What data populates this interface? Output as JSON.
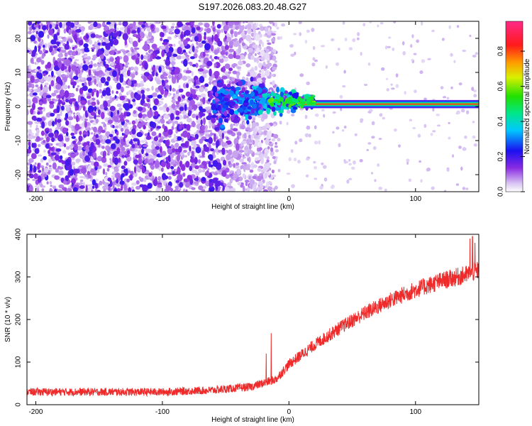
{
  "title": "S197.2026.083.20.48.G27",
  "colors": {
    "snr_line": "#ee2a2a",
    "axis": "#000000",
    "background": "#ffffff"
  },
  "chart_data": [
    {
      "type": "heatmap",
      "name": "spectrogram",
      "xlabel": "Height of straight line (km)",
      "ylabel": "Frequency (Hz)",
      "xlim": [
        -207,
        150
      ],
      "ylim": [
        -25,
        25
      ],
      "xticks": [
        -200,
        -100,
        0,
        100
      ],
      "yticks": [
        -20,
        -10,
        0,
        10,
        20
      ],
      "features": {
        "noise_region_x": [
          -207,
          -15
        ],
        "signal_band_center_hz": 0.7,
        "signal_band_width_hz": 2.4,
        "signal_onset_x": -60,
        "signal_stable_x": 20
      }
    },
    {
      "type": "colorbar",
      "name": "colorbar",
      "label": "Normalized spectral amplitude",
      "range": [
        0.0,
        0.97
      ],
      "ticks": [
        0.0,
        0.2,
        0.4,
        0.6,
        0.8
      ],
      "tick_labels": [
        "0.0",
        "0.2",
        "0.4",
        "0.6",
        "0.8"
      ],
      "colormap": "rainbow (white → purple → blue → cyan → green → yellow → orange → red → pink)"
    },
    {
      "type": "line",
      "name": "snr",
      "xlabel": "Height of straight line (km)",
      "ylabel": "SNR (10 * v/v)",
      "xlim": [
        -207,
        150
      ],
      "ylim": [
        0,
        400
      ],
      "xticks": [
        -200,
        -100,
        0,
        100
      ],
      "yticks": [
        0,
        100,
        200,
        300,
        400
      ],
      "series": [
        {
          "name": "SNR",
          "trend": {
            "x": [
              -207,
              -150,
              -100,
              -60,
              -30,
              -10,
              0,
              20,
              40,
              60,
              80,
              100,
              120,
              140,
              150
            ],
            "y": [
              30,
              30,
              30,
              34,
              42,
              60,
              95,
              140,
              180,
              215,
              245,
              270,
              290,
              305,
              315
            ]
          },
          "noise_amplitude": 14,
          "spikes": [
            {
              "x": -14,
              "y": 168
            },
            {
              "x": -18,
              "y": 120
            },
            {
              "x": 145,
              "y": 395
            },
            {
              "x": 143,
              "y": 390
            },
            {
              "x": 147,
              "y": 380
            }
          ]
        }
      ]
    }
  ]
}
